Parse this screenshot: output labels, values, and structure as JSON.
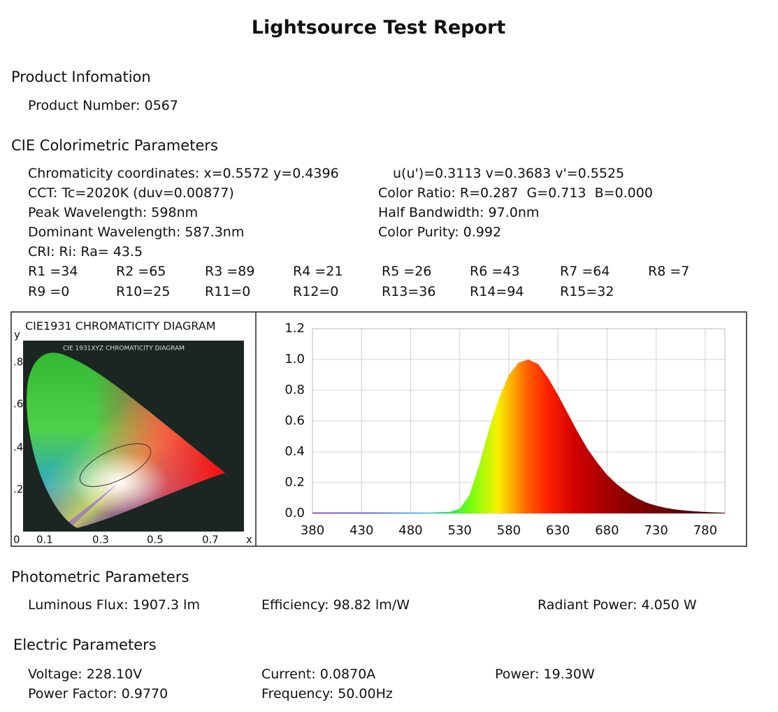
{
  "title": "Lightsource Test Report",
  "product": {
    "heading": "Product Infomation",
    "lines": [
      "Product Number: 0567"
    ]
  },
  "cie": {
    "heading": "CIE Colorimetric Parameters",
    "lines": [
      [
        "Chromaticity coordinates: x=0.5572 y=0.4396",
        "u(u')=0.3113 v=0.3683 v'=0.5525"
      ],
      [
        "CCT: Tc=2020K (duv=0.00877)",
        "Color Ratio: R=0.287  G=0.713  B=0.000"
      ],
      [
        "Peak Wavelength: 598nm",
        "Half Bandwidth: 97.0nm"
      ],
      [
        "Dominant Wavelength: 587.3nm",
        "Color Purity: 0.992"
      ],
      [
        "CRI: Ri: Ra= 43.5"
      ]
    ],
    "ri": [
      [
        "R1 =34",
        "R2 =65",
        "R3 =89",
        "R4 =21",
        "R5 =26",
        "R6 =43",
        "R7 =64",
        "R8 =7"
      ],
      [
        "R9 =0",
        "R10=25",
        "R11=0",
        "R12=0",
        "R13=36",
        "R14=94",
        "R15=32"
      ]
    ]
  },
  "chromaticity_diagram": {
    "title": "CIE1931 CHROMATICITY DIAGRAM",
    "inner_title": "CIE 1931XYZ CHROMATICITY DIAGRAM",
    "y_label": "y",
    "x_label": "x",
    "yticks": [
      ".8",
      ".6",
      ".4",
      ".2"
    ],
    "xticks": [
      "0",
      "0.1",
      "0.3",
      "0.5",
      "0.7"
    ]
  },
  "spectrum": {
    "type": "area",
    "x": [
      380,
      430,
      480,
      500,
      520,
      530,
      540,
      550,
      560,
      570,
      580,
      590,
      600,
      610,
      620,
      630,
      640,
      650,
      660,
      670,
      680,
      690,
      700,
      710,
      720,
      730,
      740,
      750,
      760,
      770,
      780,
      790,
      800
    ],
    "values": [
      0.005,
      0.005,
      0.005,
      0.005,
      0.01,
      0.03,
      0.12,
      0.32,
      0.55,
      0.75,
      0.9,
      0.98,
      1.0,
      0.97,
      0.88,
      0.77,
      0.65,
      0.53,
      0.42,
      0.33,
      0.25,
      0.19,
      0.14,
      0.1,
      0.07,
      0.05,
      0.035,
      0.025,
      0.018,
      0.013,
      0.009,
      0.006,
      0.004
    ],
    "xlim": [
      380,
      800
    ],
    "ylim": [
      0,
      1.2
    ],
    "xticks": [
      380,
      430,
      480,
      530,
      580,
      630,
      680,
      730,
      780
    ],
    "yticks": [
      {
        "value": 0,
        "label": "0.0"
      },
      0.2,
      0.4,
      0.6,
      0.8,
      {
        "value": 1,
        "label": "1.0"
      },
      1.2
    ],
    "grid": true
  },
  "photometric": {
    "heading": "Photometric Parameters",
    "items": [
      "Luminous Flux: 1907.3 lm",
      "Efficiency: 98.82 lm/W",
      "Radiant Power: 4.050 W"
    ]
  },
  "electric": {
    "heading": "Electric Parameters",
    "rows": [
      [
        "Voltage: 228.10V",
        "Current: 0.0870A",
        "Power: 19.30W"
      ],
      [
        "Power Factor: 0.9770",
        "Frequency: 50.00Hz"
      ]
    ]
  }
}
